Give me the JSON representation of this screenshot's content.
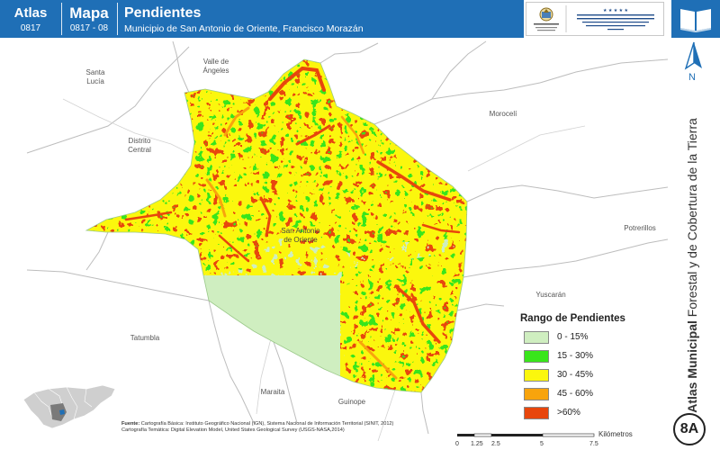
{
  "header": {
    "atlas_label": "Atlas",
    "atlas_code": "0817",
    "map_label": "Mapa",
    "map_code": "0817 - 08",
    "title": "Pendientes",
    "subtitle": "Municipio de San Antonio de Oriente, Francisco Morazán"
  },
  "places": {
    "valle_de_angeles": "Valle de\nÁngeles",
    "santa_lucia": "Santa\nLucía",
    "distrito_central": "Distrito\nCentral",
    "morocelí": "Morocelí",
    "potrerillos": "Potrerillos",
    "yuscaran": "Yuscarán",
    "tatumbla": "Tatumbla",
    "maraita": "Maraita",
    "guinope": "Guinope",
    "san_antonio": "San Antonio\nde Oriente"
  },
  "legend": {
    "title": "Rango de Pendientes",
    "items": [
      {
        "label": "0 - 15%",
        "color": "#cfeec0"
      },
      {
        "label": "15 - 30%",
        "color": "#39e51b"
      },
      {
        "label": "30 - 45%",
        "color": "#fbf70d"
      },
      {
        "label": "45 - 60%",
        "color": "#f8a40c"
      },
      {
        "label": ">60%",
        "color": "#e8460c"
      }
    ]
  },
  "side": {
    "north": "N",
    "title_bold": "Atlas Municipal",
    "title_rest": " Forestal y de Cobertura de la Tierra",
    "badge": "8A"
  },
  "sources": {
    "label": "Fuente:",
    "line1": "Cartografía Básica: Instituto Geográfico Nacional (IGN), Sistema Nacional de Información Territorial (SINIT, 2012)",
    "line2": "Cartografía Temática: Digital Elevation Model, United States Geological Survey (USGS-NASA,2014)"
  },
  "scale": {
    "ticks": [
      "0",
      "1.25",
      "2.5",
      "5",
      "7.5"
    ],
    "unit": "Kilómetros"
  },
  "colors": {
    "header_blue": "#1f6fb6",
    "base_fill": "#cfeec0",
    "boundary": "#bdbdbd"
  }
}
